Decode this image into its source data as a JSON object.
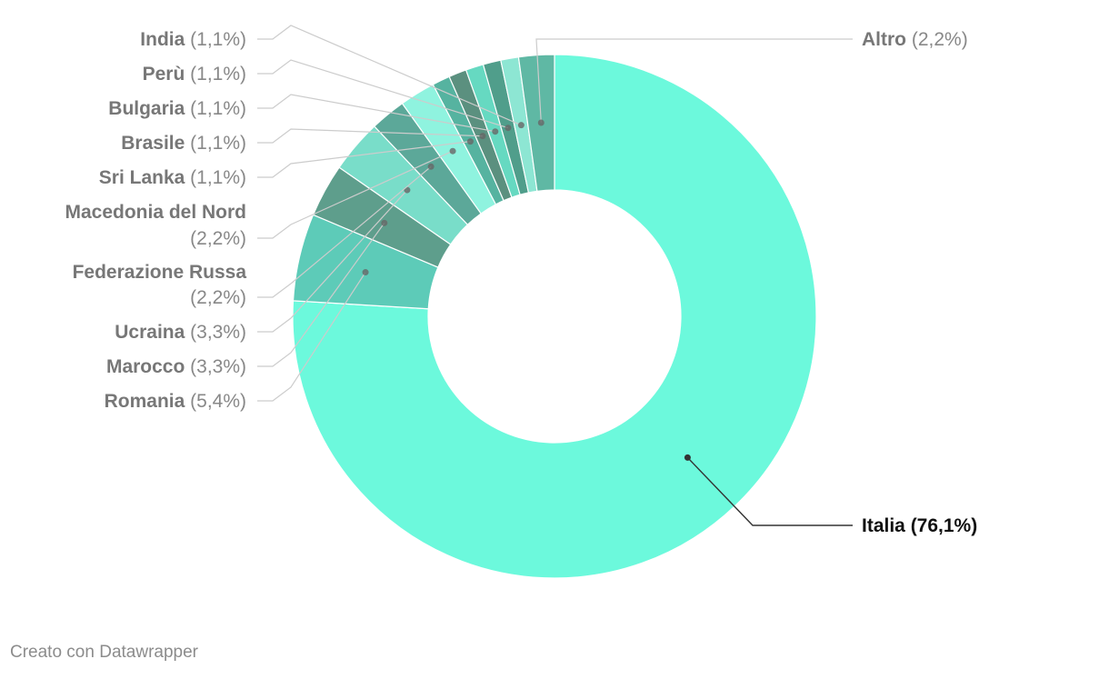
{
  "chart_data": {
    "type": "pie",
    "donut": true,
    "title": "",
    "slices": [
      {
        "label": "Italia",
        "value_label": "(76,1%)",
        "value": 76.1,
        "color": "#6cf9dc",
        "highlight": true
      },
      {
        "label": "Romania",
        "value_label": "(5,4%)",
        "value": 5.4,
        "color": "#5dcbb8"
      },
      {
        "label": "Marocco",
        "value_label": "(3,3%)",
        "value": 3.3,
        "color": "#5e9e8c"
      },
      {
        "label": "Ucraina",
        "value_label": "(3,3%)",
        "value": 3.3,
        "color": "#79ddc9"
      },
      {
        "label": "Federazione Russa",
        "value_label": "(2,2%)",
        "value": 2.2,
        "color": "#5ca899"
      },
      {
        "label": "Macedonia del Nord",
        "value_label": "(2,2%)",
        "value": 2.2,
        "color": "#8ff3df"
      },
      {
        "label": "Sri Lanka",
        "value_label": "(1,1%)",
        "value": 1.1,
        "color": "#56b3a0"
      },
      {
        "label": "Brasile",
        "value_label": "(1,1%)",
        "value": 1.1,
        "color": "#5b907f"
      },
      {
        "label": "Bulgaria",
        "value_label": "(1,1%)",
        "value": 1.1,
        "color": "#66d9c1"
      },
      {
        "label": "Perù",
        "value_label": "(1,1%)",
        "value": 1.1,
        "color": "#509e8b"
      },
      {
        "label": "India",
        "value_label": "(1,1%)",
        "value": 1.1,
        "color": "#8de6d3"
      },
      {
        "label": "Altro",
        "value_label": "(2,2%)",
        "value": 2.2,
        "color": "#5fb8a4"
      }
    ]
  },
  "footer": {
    "credit": "Creato con Datawrapper"
  }
}
